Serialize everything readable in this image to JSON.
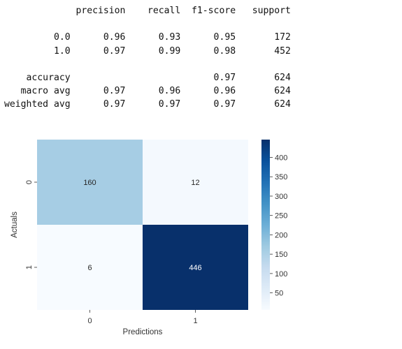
{
  "classification_report": {
    "header": [
      "precision",
      "recall",
      "f1-score",
      "support"
    ],
    "rows": [
      {
        "label": "0.0",
        "values": [
          "0.96",
          "0.93",
          "0.95",
          "172"
        ]
      },
      {
        "label": "1.0",
        "values": [
          "0.97",
          "0.99",
          "0.98",
          "452"
        ]
      }
    ],
    "summary": [
      {
        "label": "accuracy",
        "values": [
          "",
          "",
          "0.97",
          "624"
        ]
      },
      {
        "label": "macro avg",
        "values": [
          "0.97",
          "0.96",
          "0.96",
          "624"
        ]
      },
      {
        "label": "weighted avg",
        "values": [
          "0.97",
          "0.97",
          "0.97",
          "624"
        ]
      }
    ]
  },
  "chart_data": {
    "type": "heatmap",
    "title": "",
    "xlabel": "Predictions",
    "ylabel": "Actuals",
    "x_categories": [
      "0",
      "1"
    ],
    "y_categories": [
      "0",
      "1"
    ],
    "values": [
      [
        160,
        12
      ],
      [
        6,
        446
      ]
    ],
    "colormap": "Blues",
    "colorbar": {
      "range": [
        6,
        446
      ],
      "ticks": [
        50,
        100,
        150,
        200,
        250,
        300,
        350,
        400
      ]
    },
    "annot_colors": {
      "light": "#262626",
      "dark": "#ffffff"
    }
  }
}
